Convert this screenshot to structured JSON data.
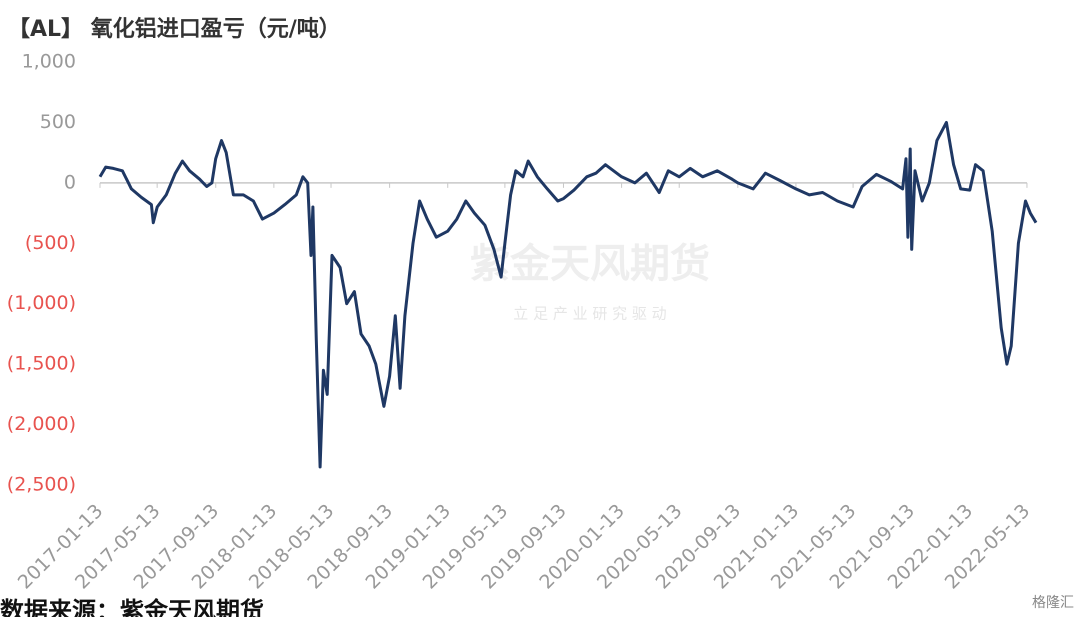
{
  "chart_data": {
    "type": "line",
    "title": "【AL】 氧化铝进口盈亏（元/吨）",
    "source": "数据来源：紫金天风期货",
    "watermark": "紫金天风期货",
    "watermark_sub": "立 足 产 业 研 究 驱 动",
    "logo": "格隆汇",
    "x": [
      "2017-01-13",
      "2017-01-25",
      "2017-02-10",
      "2017-03-01",
      "2017-03-20",
      "2017-04-10",
      "2017-05-01",
      "2017-05-05",
      "2017-05-13",
      "2017-06-01",
      "2017-06-20",
      "2017-07-05",
      "2017-07-20",
      "2017-08-10",
      "2017-08-25",
      "2017-09-05",
      "2017-09-13",
      "2017-09-25",
      "2017-10-05",
      "2017-10-20",
      "2017-11-10",
      "2017-12-01",
      "2017-12-20",
      "2018-01-13",
      "2018-02-05",
      "2018-03-01",
      "2018-03-15",
      "2018-03-25",
      "2018-04-01",
      "2018-04-05",
      "2018-04-12",
      "2018-04-20",
      "2018-04-27",
      "2018-05-05",
      "2018-05-15",
      "2018-06-01",
      "2018-06-15",
      "2018-07-01",
      "2018-07-15",
      "2018-08-01",
      "2018-08-15",
      "2018-09-01",
      "2018-09-13",
      "2018-09-25",
      "2018-10-05",
      "2018-10-15",
      "2018-11-01",
      "2018-11-15",
      "2018-12-01",
      "2018-12-20",
      "2019-01-13",
      "2019-02-01",
      "2019-02-20",
      "2019-03-10",
      "2019-04-01",
      "2019-04-20",
      "2019-05-05",
      "2019-05-13",
      "2019-05-25",
      "2019-06-05",
      "2019-06-20",
      "2019-07-01",
      "2019-07-20",
      "2019-08-10",
      "2019-09-01",
      "2019-09-13",
      "2019-10-05",
      "2019-11-01",
      "2019-11-20",
      "2019-12-10",
      "2020-01-13",
      "2020-02-10",
      "2020-03-05",
      "2020-04-01",
      "2020-04-20",
      "2020-05-13",
      "2020-06-05",
      "2020-07-01",
      "2020-08-01",
      "2020-09-01",
      "2020-09-13",
      "2020-10-15",
      "2020-11-10",
      "2020-12-10",
      "2021-01-13",
      "2021-02-10",
      "2021-03-10",
      "2021-04-10",
      "2021-05-13",
      "2021-06-01",
      "2021-07-01",
      "2021-08-01",
      "2021-08-25",
      "2021-09-01",
      "2021-09-05",
      "2021-09-10",
      "2021-09-13",
      "2021-09-20",
      "2021-10-05",
      "2021-10-20",
      "2021-11-05",
      "2021-11-25",
      "2021-12-10",
      "2021-12-25",
      "2022-01-13",
      "2022-01-25",
      "2022-02-10",
      "2022-03-01",
      "2022-03-20",
      "2022-04-01",
      "2022-04-10",
      "2022-04-25",
      "2022-05-10",
      "2022-05-20",
      "2022-06-01"
    ],
    "series": [
      {
        "color": "#1f3864",
        "values": [
          50,
          130,
          120,
          100,
          -50,
          -120,
          -180,
          -330,
          -200,
          -100,
          80,
          180,
          100,
          30,
          -30,
          0,
          200,
          350,
          250,
          -100,
          -100,
          -150,
          -300,
          -250,
          -180,
          -100,
          50,
          0,
          -600,
          -200,
          -1300,
          -2350,
          -1550,
          -1750,
          -600,
          -700,
          -1000,
          -900,
          -1250,
          -1350,
          -1500,
          -1850,
          -1600,
          -1100,
          -1700,
          -1100,
          -500,
          -150,
          -300,
          -450,
          -400,
          -300,
          -150,
          -250,
          -350,
          -550,
          -780,
          -500,
          -100,
          100,
          50,
          180,
          50,
          -50,
          -150,
          -130,
          -60,
          50,
          80,
          150,
          50,
          0,
          80,
          -80,
          100,
          50,
          120,
          50,
          100,
          30,
          0,
          -50,
          80,
          20,
          -50,
          -100,
          -80,
          -150,
          -200,
          -30,
          70,
          10,
          -50,
          200,
          -450,
          280,
          -550,
          100,
          -150,
          0,
          350,
          500,
          150,
          -50,
          -60,
          150,
          100,
          -400,
          -1200,
          -1500,
          -1350,
          -500,
          -150,
          -250,
          -330
        ]
      }
    ],
    "xlim": [
      "2017-01-13",
      "2022-06-01"
    ],
    "xticks": [
      "2017-01-13",
      "2017-05-13",
      "2017-09-13",
      "2018-01-13",
      "2018-05-13",
      "2018-09-13",
      "2019-01-13",
      "2019-05-13",
      "2019-09-13",
      "2020-01-13",
      "2020-05-13",
      "2020-09-13",
      "2021-01-13",
      "2021-05-13",
      "2021-09-13",
      "2022-01-13",
      "2022-05-13"
    ],
    "ylim": [
      -2500,
      1000
    ],
    "yticks": [
      {
        "value": 1000,
        "label": "1,000"
      },
      500,
      0,
      {
        "value": -500,
        "label": "(500)"
      },
      {
        "value": -1000,
        "label": "(1,000)"
      },
      {
        "value": -1500,
        "label": "(1,500)"
      },
      {
        "value": -2000,
        "label": "(2,000)"
      },
      {
        "value": -2500,
        "label": "(2,500)"
      }
    ],
    "tick_color": "#999999",
    "negative_tick_color": "#e8534f",
    "axis_color": "#c8c8c8",
    "grid": false
  }
}
